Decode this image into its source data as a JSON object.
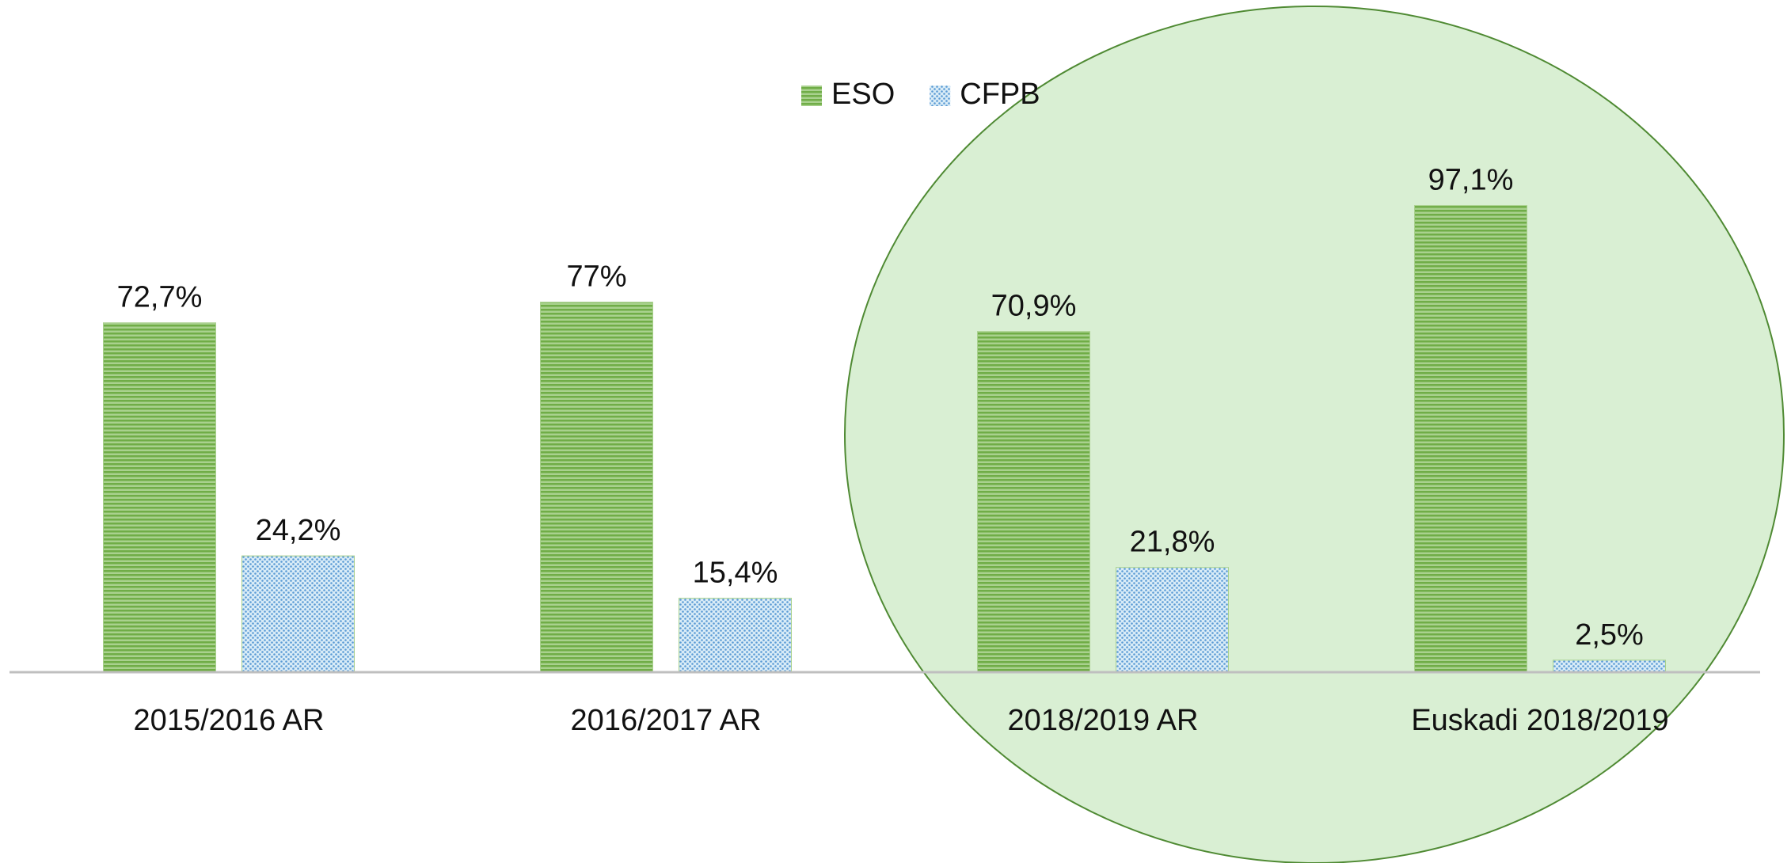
{
  "chart_data": {
    "type": "bar",
    "categories": [
      "2015/2016 AR",
      "2016/2017 AR",
      "2018/2019 AR",
      "Euskadi 2018/2019"
    ],
    "series": [
      {
        "name": "ESO",
        "color": "#70ad47",
        "values": [
          72.7,
          77,
          70.9,
          97.1
        ],
        "value_labels": [
          "72,7%",
          "77%",
          "70,9%",
          "97,1%"
        ]
      },
      {
        "name": "CFPB",
        "color": "#5b9bd5",
        "values": [
          24.2,
          15.4,
          21.8,
          2.5
        ],
        "value_labels": [
          "24,2%",
          "15,4%",
          "21,8%",
          "2,5%"
        ]
      }
    ],
    "legend": "top"
  }
}
